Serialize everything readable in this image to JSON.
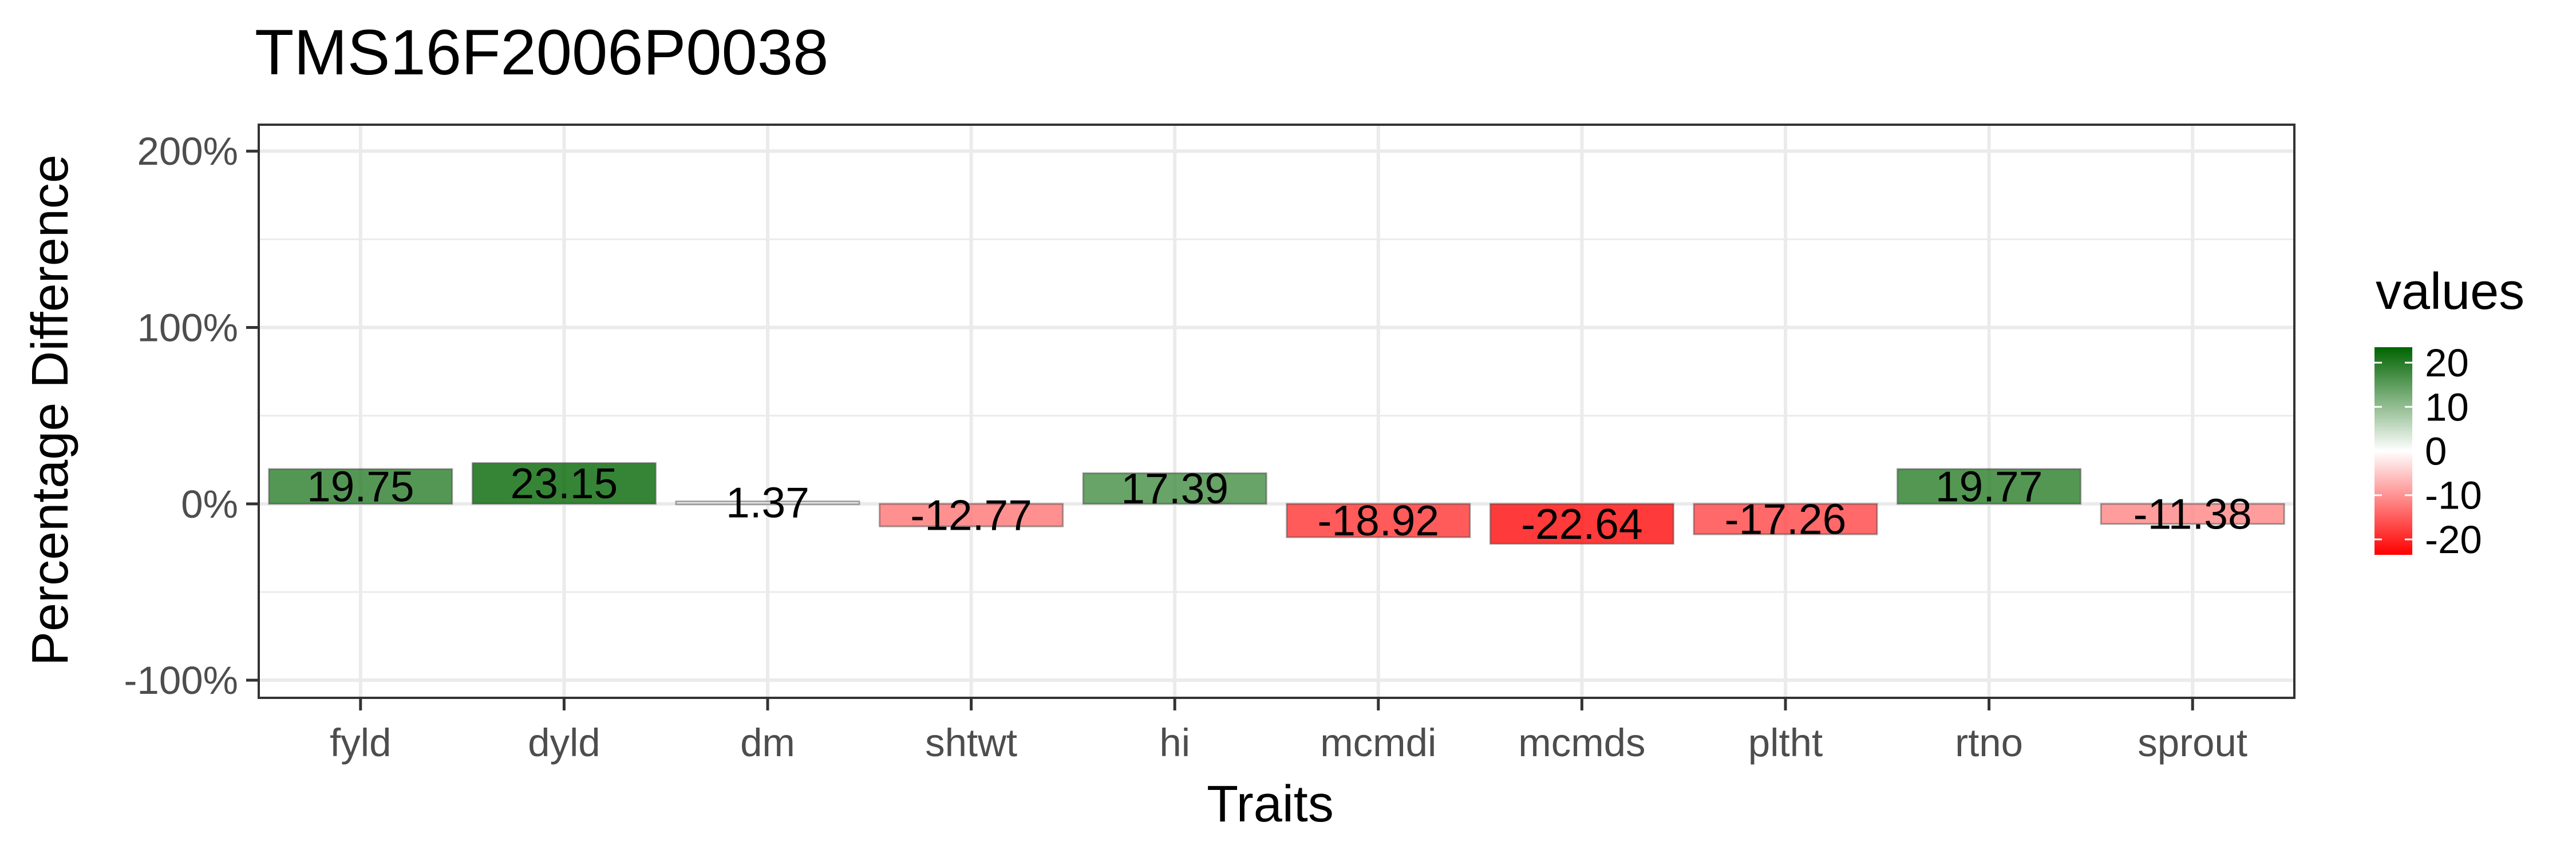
{
  "chart_data": {
    "type": "bar",
    "title": "TMS16F2006P0038",
    "xlabel": "Traits",
    "ylabel": "Percentage Difference",
    "categories": [
      "fyld",
      "dyld",
      "dm",
      "shtwt",
      "hi",
      "mcmdi",
      "mcmds",
      "pltht",
      "rtno",
      "sprout"
    ],
    "values": [
      19.75,
      23.15,
      1.37,
      -12.77,
      17.39,
      -18.92,
      -22.64,
      -17.26,
      19.77,
      -11.38
    ],
    "value_labels": [
      "19.75",
      "23.15",
      "1.37",
      "-12.77",
      "17.39",
      "-18.92",
      "-22.64",
      "-17.26",
      "19.77",
      "-11.38"
    ],
    "ylim": [
      -110,
      215
    ],
    "y_ticks": [
      -100,
      0,
      100,
      200
    ],
    "y_tick_labels": [
      "-100%",
      "0%",
      "100%",
      "200%"
    ],
    "grid": true,
    "legend": {
      "title": "values",
      "position": "right",
      "ticks": [
        20,
        10,
        0,
        -10,
        -20
      ],
      "tick_labels": [
        "20",
        "10",
        "0",
        "-10",
        "-20"
      ],
      "range": [
        -23.5,
        23.5
      ],
      "low_color": "#ff0000",
      "mid_color": "#ffffff",
      "high_color": "#006400"
    }
  }
}
